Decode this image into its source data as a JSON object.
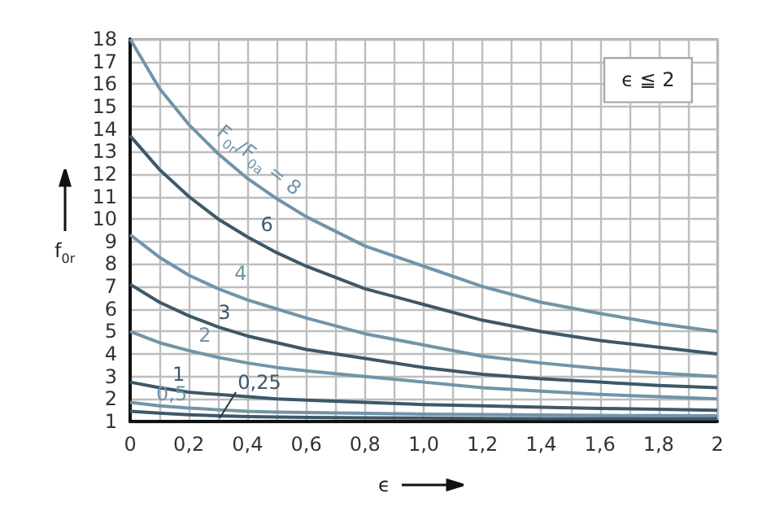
{
  "chart_data": {
    "type": "line",
    "xlabel": "ϵ",
    "ylabel": "f$_{0r}$",
    "annotations": [
      "ϵ ≦ 2"
    ],
    "x": [
      0,
      0.1,
      0.2,
      0.3,
      0.4,
      0.5,
      0.6,
      0.8,
      1.0,
      1.2,
      1.4,
      1.6,
      1.8,
      2.0
    ],
    "series": [
      {
        "name": "F$_{0r}$/F$_{0a}$ = 8",
        "color": "#7194a8",
        "values": [
          18,
          15.8,
          14.2,
          12.9,
          11.8,
          10.9,
          10.1,
          8.8,
          7.9,
          7.0,
          6.3,
          5.8,
          5.35,
          5.0
        ]
      },
      {
        "name": "6",
        "color": "#3e5868",
        "values": [
          13.7,
          12.2,
          11.0,
          10.0,
          9.2,
          8.5,
          7.9,
          6.9,
          6.2,
          5.5,
          5.0,
          4.6,
          4.3,
          4.0
        ]
      },
      {
        "name": "4",
        "color": "#7194a8",
        "values": [
          9.3,
          8.3,
          7.5,
          6.9,
          6.4,
          6.0,
          5.6,
          4.9,
          4.4,
          3.9,
          3.6,
          3.35,
          3.15,
          3.0
        ]
      },
      {
        "name": "3",
        "color": "#3e5868",
        "values": [
          7.1,
          6.3,
          5.7,
          5.2,
          4.8,
          4.5,
          4.2,
          3.8,
          3.4,
          3.1,
          2.9,
          2.75,
          2.6,
          2.5
        ]
      },
      {
        "name": "2",
        "color": "#7194a8",
        "values": [
          5.0,
          4.5,
          4.15,
          3.85,
          3.6,
          3.4,
          3.25,
          3.0,
          2.75,
          2.5,
          2.35,
          2.2,
          2.1,
          2.0
        ]
      },
      {
        "name": "1",
        "color": "#3e5868",
        "values": [
          2.75,
          2.5,
          2.3,
          2.2,
          2.1,
          2.0,
          1.95,
          1.85,
          1.75,
          1.7,
          1.63,
          1.58,
          1.54,
          1.5
        ]
      },
      {
        "name": "0,5",
        "color": "#7194a8",
        "values": [
          1.85,
          1.7,
          1.6,
          1.52,
          1.45,
          1.42,
          1.4,
          1.36,
          1.33,
          1.31,
          1.29,
          1.27,
          1.26,
          1.25
        ]
      },
      {
        "name": "0,25",
        "color": "#3e5868",
        "values": [
          1.45,
          1.37,
          1.3,
          1.25,
          1.22,
          1.2,
          1.18,
          1.16,
          1.15,
          1.14,
          1.13,
          1.13,
          1.12,
          1.12
        ]
      }
    ],
    "xlim": [
      0,
      2
    ],
    "xticks": [
      0,
      {
        "value": 0.1,
        "label": null
      },
      {
        "value": 0.2,
        "label": "0,2"
      },
      {
        "value": 0.3,
        "label": null
      },
      {
        "value": 0.4,
        "label": "0,4"
      },
      {
        "value": 0.5,
        "label": null
      },
      {
        "value": 0.6,
        "label": "0,6"
      },
      {
        "value": 0.7,
        "label": null
      },
      {
        "value": 0.8,
        "label": "0,8"
      },
      {
        "value": 0.9,
        "label": null
      },
      {
        "value": 1.0,
        "label": "1,0"
      },
      {
        "value": 1.1,
        "label": null
      },
      {
        "value": 1.2,
        "label": "1,2"
      },
      {
        "value": 1.3,
        "label": null
      },
      {
        "value": 1.4,
        "label": "1,4"
      },
      {
        "value": 1.5,
        "label": null
      },
      {
        "value": 1.6,
        "label": "1,6"
      },
      {
        "value": 1.7,
        "label": null
      },
      {
        "value": 1.8,
        "label": "1,8"
      },
      {
        "value": 1.9,
        "label": null
      },
      2
    ],
    "ylim": [
      1,
      18
    ],
    "yticks": [
      1,
      2,
      3,
      4,
      5,
      6,
      7,
      8,
      9,
      10,
      11,
      12,
      13,
      14,
      15,
      16,
      17,
      18
    ],
    "grid": true,
    "legend": false,
    "marker": "none",
    "line_style": "solid"
  }
}
